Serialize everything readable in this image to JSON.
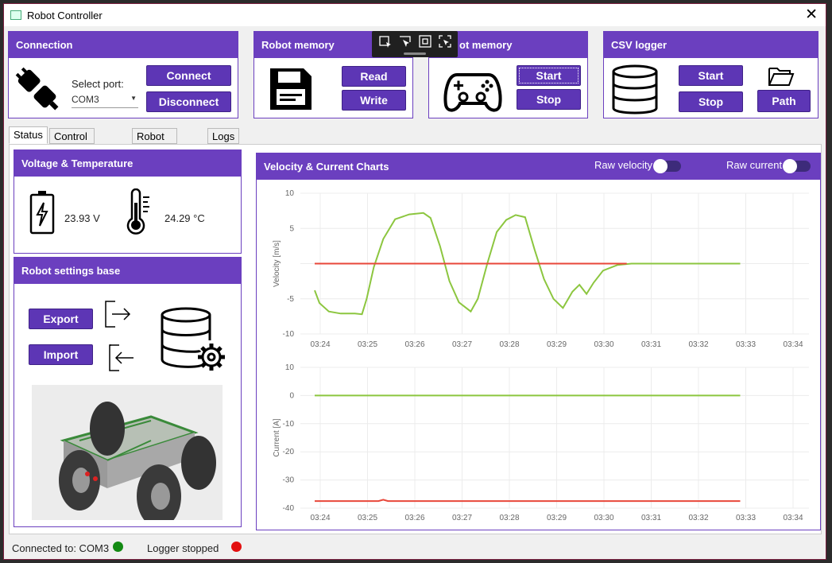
{
  "window": {
    "title": "Robot Controller",
    "close_glyph": "✕"
  },
  "connection": {
    "title": "Connection",
    "port_label": "Select port:",
    "port_value": "COM3",
    "connect": "Connect",
    "disconnect": "Disconnect",
    "icon": "plug-icon"
  },
  "robot_memory": {
    "title": "Robot memory",
    "read": "Read",
    "write": "Write",
    "icon": "floppy-disk-icon"
  },
  "gamepad_panel": {
    "title": "ot memory",
    "start": "Start",
    "stop": "Stop",
    "icon": "gamepad-icon"
  },
  "csv_logger": {
    "title": "CSV logger",
    "start": "Start",
    "stop": "Stop",
    "path": "Path",
    "icons": [
      "database-icon",
      "folder-icon"
    ]
  },
  "tabs": [
    "Status",
    "Control settings",
    "Robot settings",
    "Logs"
  ],
  "voltage_temp": {
    "title": "Voltage & Temperature",
    "voltage": "23.93 V",
    "temperature": "24.29 °C",
    "icons": [
      "battery-icon",
      "thermometer-icon"
    ]
  },
  "settings_base": {
    "title": "Robot settings base",
    "export": "Export",
    "import": "Import",
    "icons": [
      "export-icon",
      "import-icon",
      "database-gear-icon",
      "robot-image"
    ]
  },
  "charts_panel": {
    "title": "Velocity & Current Charts",
    "raw_velocity": "Raw velocity",
    "raw_current": "Raw current"
  },
  "status": {
    "connected": "Connected to: COM3",
    "connected_color": "#138a13",
    "logger": "Logger stopped",
    "logger_color": "#e31010"
  },
  "colors": {
    "accent": "#6b3fbf",
    "button": "#5d36b5",
    "series_green": "#8cc63f",
    "series_red": "#e8473a"
  },
  "chart_data": [
    {
      "type": "line",
      "ylabel": "Velocity [m/s]",
      "ylim": [
        -10,
        10
      ],
      "yticks": [
        "10",
        "5",
        "",
        "-5",
        "-10"
      ],
      "xticks": [
        "03:24",
        "03:25",
        "03:26",
        "03:27",
        "03:28",
        "03:29",
        "03:30",
        "03:31",
        "03:32",
        "03:33",
        "03:34"
      ],
      "grid": true,
      "series": [
        {
          "color": "#8cc63f",
          "points": [
            [
              0.0,
              -3.8
            ],
            [
              0.1,
              -5.6
            ],
            [
              0.3,
              -6.8
            ],
            [
              0.55,
              -7.1
            ],
            [
              0.85,
              -7.1
            ],
            [
              1.0,
              -7.2
            ],
            [
              1.1,
              -5.0
            ],
            [
              1.25,
              -0.5
            ],
            [
              1.45,
              3.5
            ],
            [
              1.7,
              6.3
            ],
            [
              2.0,
              7.0
            ],
            [
              2.3,
              7.2
            ],
            [
              2.45,
              6.5
            ],
            [
              2.65,
              2.5
            ],
            [
              2.85,
              -2.5
            ],
            [
              3.05,
              -5.5
            ],
            [
              3.3,
              -6.8
            ],
            [
              3.45,
              -5.0
            ],
            [
              3.65,
              0.0
            ],
            [
              3.85,
              4.5
            ],
            [
              4.05,
              6.2
            ],
            [
              4.25,
              6.9
            ],
            [
              4.45,
              6.6
            ],
            [
              4.65,
              2.0
            ],
            [
              4.85,
              -2.2
            ],
            [
              5.05,
              -5.0
            ],
            [
              5.25,
              -6.3
            ],
            [
              5.45,
              -4.0
            ],
            [
              5.6,
              -3.0
            ],
            [
              5.75,
              -4.3
            ],
            [
              5.9,
              -2.7
            ],
            [
              6.1,
              -1.0
            ],
            [
              6.4,
              -0.2
            ],
            [
              6.7,
              0.0
            ],
            [
              7.5,
              0.0
            ],
            [
              9.0,
              0.0
            ]
          ]
        },
        {
          "color": "#e8473a",
          "points": [
            [
              0.0,
              0.0
            ],
            [
              6.6,
              0.0
            ]
          ]
        }
      ]
    },
    {
      "type": "line",
      "ylabel": "Current [A]",
      "ylim": [
        -40,
        10
      ],
      "yticks": [
        "10",
        "0",
        "-10",
        "-20",
        "-30",
        "-40"
      ],
      "xticks": [
        "03:24",
        "03:25",
        "03:26",
        "03:27",
        "03:28",
        "03:29",
        "03:30",
        "03:31",
        "03:32",
        "03:33",
        "03:34"
      ],
      "grid": true,
      "series": [
        {
          "color": "#8cc63f",
          "points": [
            [
              0.0,
              0.0
            ],
            [
              9.0,
              0.0
            ]
          ]
        },
        {
          "color": "#e8473a",
          "points": [
            [
              0.0,
              -37.5
            ],
            [
              1.35,
              -37.5
            ],
            [
              1.45,
              -37.0
            ],
            [
              1.55,
              -37.5
            ],
            [
              9.0,
              -37.5
            ]
          ]
        }
      ]
    }
  ]
}
